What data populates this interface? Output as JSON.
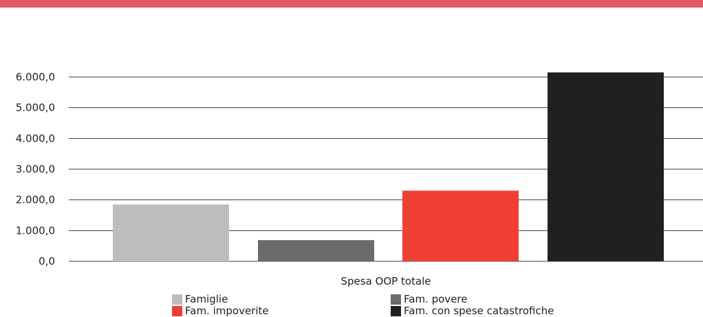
{
  "theme": {
    "top_band_color": "#e05a66"
  },
  "chart_data": {
    "type": "bar",
    "title": "",
    "xlabel": "Spesa OOP totale",
    "ylabel": "",
    "ylim": [
      0,
      6000
    ],
    "y_ticks": [
      0,
      1000,
      2000,
      3000,
      4000,
      5000,
      6000
    ],
    "y_tick_labels": [
      "0,0",
      "1.000,0",
      "2.000,0",
      "3.000,0",
      "4.000,0",
      "5.000,0",
      "6.000,0"
    ],
    "grid": true,
    "legend_position": "bottom",
    "series": [
      {
        "name": "Famiglie",
        "value": 1850,
        "color": "#bdbdbf"
      },
      {
        "name": "Fam. povere",
        "value": 690,
        "color": "#6b6b6e"
      },
      {
        "name": "Fam. impoverite",
        "value": 2300,
        "color": "#ef3f35"
      },
      {
        "name": "Fam. con spese catastrofiche",
        "value": 6150,
        "color": "#221f20"
      }
    ]
  }
}
